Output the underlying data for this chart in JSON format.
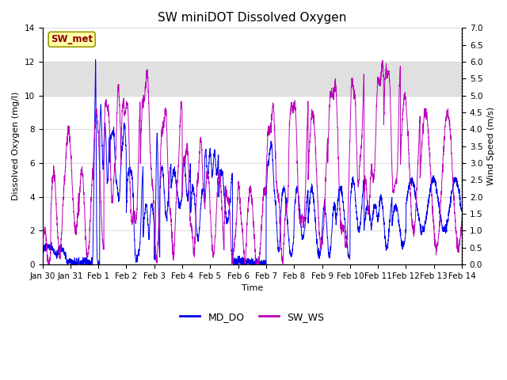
{
  "title": "SW miniDOT Dissolved Oxygen",
  "xlabel": "Time",
  "ylabel_left": "Dissolved Oxygen (mg/l)",
  "ylabel_right": "Wind Speed (m/s)",
  "ylim_left": [
    0,
    14
  ],
  "ylim_right": [
    0,
    7
  ],
  "yticks_left": [
    0,
    2,
    4,
    6,
    8,
    10,
    12,
    14
  ],
  "yticks_right": [
    0.0,
    0.5,
    1.0,
    1.5,
    2.0,
    2.5,
    3.0,
    3.5,
    4.0,
    4.5,
    5.0,
    5.5,
    6.0,
    6.5,
    7.0
  ],
  "xtick_labels": [
    "Jan 30",
    "Jan 31",
    "Feb 1",
    "Feb 2",
    "Feb 3",
    "Feb 4",
    "Feb 5",
    "Feb 6",
    "Feb 7",
    "Feb 8",
    "Feb 9",
    "Feb 10",
    "Feb 11",
    "Feb 12",
    "Feb 13",
    "Feb 14"
  ],
  "color_md_do": "#0000ee",
  "color_sw_ws": "#bb00bb",
  "color_bg_band": "#e0e0e0",
  "band_ylim": [
    10,
    12
  ],
  "annotation_text": "SW_met",
  "annotation_color_text": "#8b0000",
  "annotation_color_bg": "#ffffaa",
  "annotation_color_border": "#999900",
  "legend_labels": [
    "MD_DO",
    "SW_WS"
  ],
  "grid_color": "#dddddd",
  "title_fontsize": 11,
  "label_fontsize": 8,
  "tick_fontsize": 7.5
}
